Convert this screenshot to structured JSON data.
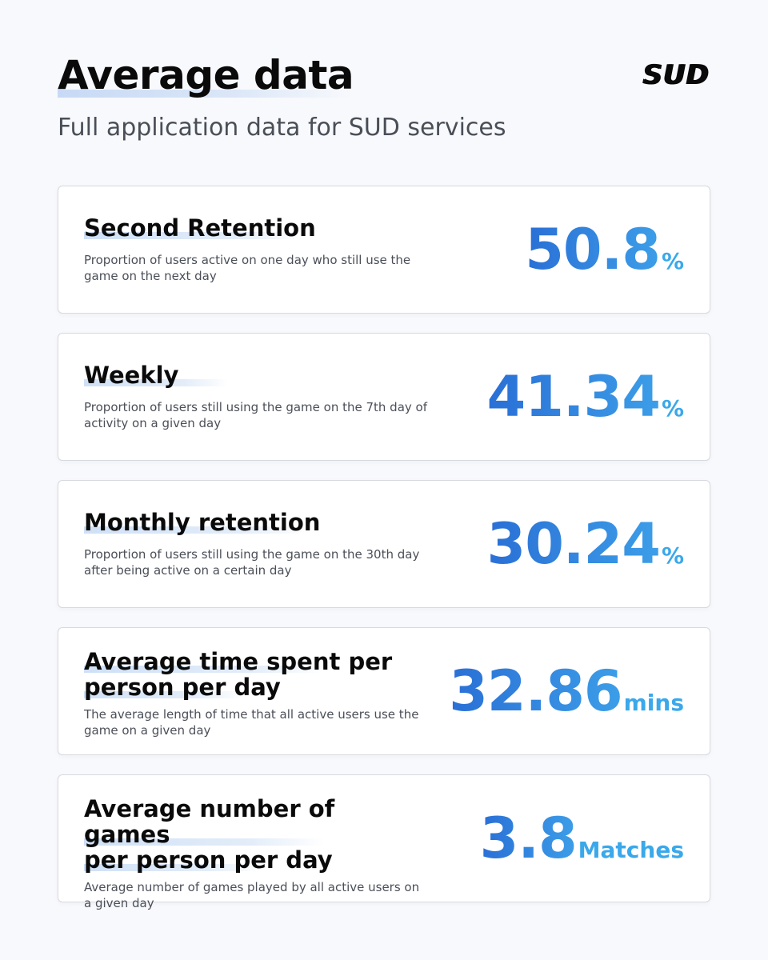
{
  "header": {
    "title": "Average data",
    "subtitle": "Full application data for SUD services",
    "logo": "SUD"
  },
  "cards": [
    {
      "title": "Second Retention",
      "description": "Proportion of users active on one day who still use the game on the next day",
      "value": "50.8",
      "unit": "%"
    },
    {
      "title": "Weekly",
      "description": "Proportion of users still using the game on the 7th day of activity on a given day",
      "value": "41.34",
      "unit": "%"
    },
    {
      "title": "Monthly retention",
      "description": "Proportion of users still using the game on the 30th day after being active on a certain day",
      "value": "30.24",
      "unit": "%"
    },
    {
      "title_line1": "Average time spent per",
      "title_line2": "person per day",
      "description": "The average length of time that all active users use the game on a given day",
      "value": "32.86",
      "unit": "mins"
    },
    {
      "title_line1": "Average number of games",
      "title_line2": "per person per day",
      "description": "Average number of games played by all active users on a given day",
      "value": "3.8",
      "unit": "Matches"
    }
  ],
  "colors": {
    "accent_start": "#2a6fd6",
    "accent_end": "#3c9ee8",
    "unit": "#3aa8ea"
  }
}
